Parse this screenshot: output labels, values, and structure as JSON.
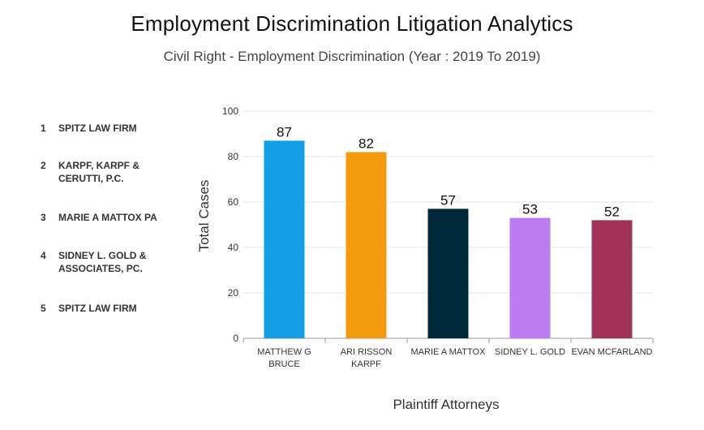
{
  "title": "Employment Discrimination Litigation Analytics",
  "subtitle": "Civil Right - Employment Discrimination (Year : 2019 To 2019)",
  "firms": [
    {
      "rank": "1",
      "name": "SPITZ LAW FIRM"
    },
    {
      "rank": "2",
      "name": "KARPF, KARPF & CERUTTI, P.C."
    },
    {
      "rank": "3",
      "name": "MARIE A MATTOX PA"
    },
    {
      "rank": "4",
      "name": "SIDNEY L. GOLD & ASSOCIATES, PC."
    },
    {
      "rank": "5",
      "name": "SPITZ LAW FIRM"
    }
  ],
  "chart_data": {
    "type": "bar",
    "categories": [
      [
        "MATTHEW G",
        "BRUCE"
      ],
      [
        "ARI RISSON",
        "KARPF"
      ],
      [
        "MARIE A MATTOX"
      ],
      [
        "SIDNEY L. GOLD"
      ],
      [
        "EVAN MCFARLAND"
      ]
    ],
    "values": [
      87,
      82,
      57,
      53,
      52
    ],
    "colors": [
      "#129fe6",
      "#f59b0f",
      "#00293a",
      "#bb7bf1",
      "#a03157"
    ],
    "xlabel": "Plaintiff Attorneys",
    "ylabel": "Total Cases",
    "ylim": [
      0,
      100
    ],
    "yticks": [
      0,
      20,
      40,
      60,
      80,
      100
    ],
    "grid": true
  }
}
